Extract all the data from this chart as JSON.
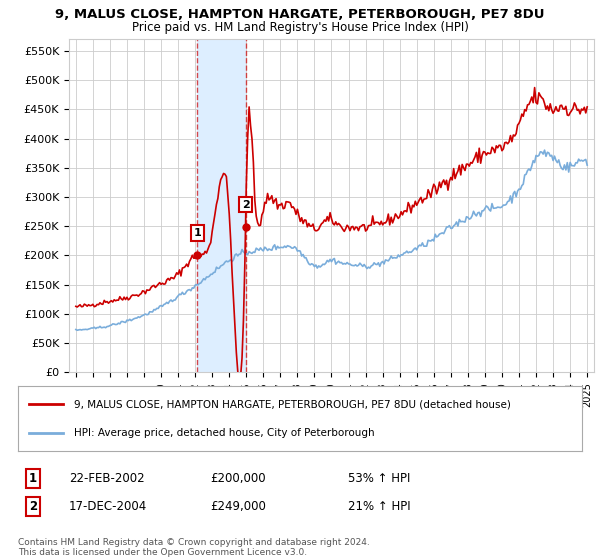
{
  "title": "9, MALUS CLOSE, HAMPTON HARGATE, PETERBOROUGH, PE7 8DU",
  "subtitle": "Price paid vs. HM Land Registry's House Price Index (HPI)",
  "legend_line1": "9, MALUS CLOSE, HAMPTON HARGATE, PETERBOROUGH, PE7 8DU (detached house)",
  "legend_line2": "HPI: Average price, detached house, City of Peterborough",
  "footer": "Contains HM Land Registry data © Crown copyright and database right 2024.\nThis data is licensed under the Open Government Licence v3.0.",
  "sale1_label": "1",
  "sale1_date": "22-FEB-2002",
  "sale1_price": "£200,000",
  "sale1_hpi": "53% ↑ HPI",
  "sale1_year": 2002.13,
  "sale1_value": 200000,
  "sale2_label": "2",
  "sale2_date": "17-DEC-2004",
  "sale2_price": "£249,000",
  "sale2_hpi": "21% ↑ HPI",
  "sale2_year": 2004.96,
  "sale2_value": 249000,
  "sale_color": "#cc0000",
  "hpi_color": "#7aaddb",
  "highlight_color": "#ddeeff",
  "grid_color": "#cccccc",
  "bg_color": "#ffffff",
  "yticks": [
    0,
    50000,
    100000,
    150000,
    200000,
    250000,
    300000,
    350000,
    400000,
    450000,
    500000,
    550000
  ],
  "ylabels": [
    "£0",
    "£50K",
    "£100K",
    "£150K",
    "£200K",
    "£250K",
    "£300K",
    "£350K",
    "£400K",
    "£450K",
    "£500K",
    "£550K"
  ],
  "xmin": 1994.6,
  "xmax": 2025.4,
  "ymin": 0,
  "ymax": 570000
}
